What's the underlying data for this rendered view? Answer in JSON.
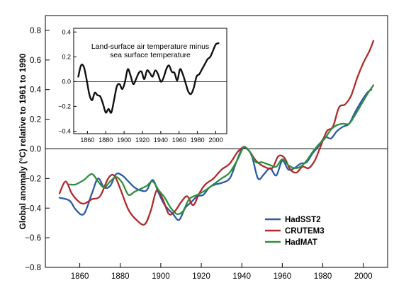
{
  "chart_data": [
    {
      "type": "line",
      "xlabel": "",
      "ylabel": "Global anomaly (°C)  relative to 1961 to 1990",
      "xlim": [
        1843,
        2012
      ],
      "ylim": [
        -0.8,
        0.9
      ],
      "xticks": [
        1860,
        1880,
        1900,
        1920,
        1940,
        1960,
        1980,
        2000
      ],
      "yticks": [
        -0.8,
        -0.6,
        -0.4,
        -0.2,
        0.0,
        0.2,
        0.4,
        0.6,
        0.8
      ],
      "ytick_labels": [
        "−0.8",
        "−0.6",
        "−0.4",
        "−0.2",
        "0.0",
        "0.2",
        "0.4",
        "0.6",
        "0.8"
      ],
      "zero_line": true,
      "grid": false,
      "legend_position": "bottom-right",
      "series": [
        {
          "name": "HadSST2",
          "color": "#2a5aa8",
          "x": [
            1850,
            1855,
            1858,
            1862,
            1866,
            1869,
            1872,
            1875,
            1878,
            1881,
            1884,
            1887,
            1890,
            1893,
            1896,
            1899,
            1902,
            1906,
            1909,
            1912,
            1915,
            1918,
            1921,
            1924,
            1927,
            1930,
            1934,
            1937,
            1940,
            1942,
            1945,
            1948,
            1951,
            1954,
            1957,
            1960,
            1963,
            1966,
            1969,
            1972,
            1975,
            1978,
            1981,
            1984,
            1987,
            1990,
            1993,
            1996,
            1999,
            2002,
            2004
          ],
          "y": [
            -0.33,
            -0.35,
            -0.41,
            -0.44,
            -0.3,
            -0.2,
            -0.26,
            -0.25,
            -0.17,
            -0.18,
            -0.22,
            -0.26,
            -0.28,
            -0.28,
            -0.21,
            -0.3,
            -0.38,
            -0.44,
            -0.48,
            -0.4,
            -0.36,
            -0.32,
            -0.31,
            -0.26,
            -0.24,
            -0.23,
            -0.2,
            -0.1,
            0.0,
            0.01,
            -0.05,
            -0.2,
            -0.17,
            -0.13,
            -0.18,
            -0.08,
            -0.14,
            -0.13,
            -0.1,
            -0.09,
            -0.03,
            0.02,
            0.08,
            0.07,
            0.12,
            0.15,
            0.17,
            0.25,
            0.32,
            0.38,
            0.4
          ]
        },
        {
          "name": "CRUTEM3",
          "color": "#b02a2a",
          "x": [
            1850,
            1853,
            1856,
            1859,
            1862,
            1866,
            1870,
            1874,
            1877,
            1880,
            1884,
            1888,
            1892,
            1895,
            1898,
            1901,
            1904,
            1907,
            1910,
            1913,
            1916,
            1919,
            1922,
            1926,
            1930,
            1934,
            1938,
            1941,
            1944,
            1947,
            1951,
            1955,
            1958,
            1961,
            1964,
            1967,
            1970,
            1973,
            1976,
            1979,
            1982,
            1985,
            1988,
            1991,
            1994,
            1997,
            2000,
            2003,
            2005
          ],
          "y": [
            -0.3,
            -0.22,
            -0.3,
            -0.35,
            -0.37,
            -0.34,
            -0.32,
            -0.2,
            -0.18,
            -0.27,
            -0.41,
            -0.48,
            -0.51,
            -0.42,
            -0.28,
            -0.34,
            -0.44,
            -0.42,
            -0.36,
            -0.32,
            -0.38,
            -0.3,
            -0.24,
            -0.2,
            -0.14,
            -0.1,
            -0.02,
            0.01,
            -0.02,
            -0.08,
            -0.12,
            -0.13,
            -0.05,
            -0.06,
            -0.14,
            -0.16,
            -0.12,
            -0.13,
            -0.08,
            0.02,
            0.12,
            0.15,
            0.28,
            0.3,
            0.36,
            0.48,
            0.58,
            0.66,
            0.73
          ]
        },
        {
          "name": "HadMAT",
          "color": "#2f8f3e",
          "x": [
            1855,
            1858,
            1862,
            1866,
            1869,
            1872,
            1875,
            1878,
            1881,
            1884,
            1887,
            1890,
            1893,
            1896,
            1899,
            1902,
            1905,
            1908,
            1911,
            1914,
            1918,
            1922,
            1926,
            1930,
            1934,
            1938,
            1941,
            1944,
            1947,
            1950,
            1954,
            1957,
            1960,
            1963,
            1966,
            1969,
            1972,
            1975,
            1978,
            1981,
            1984,
            1987,
            1990,
            1993,
            1996,
            1999,
            2002,
            2005
          ],
          "y": [
            -0.24,
            -0.24,
            -0.21,
            -0.17,
            -0.22,
            -0.26,
            -0.22,
            -0.19,
            -0.23,
            -0.31,
            -0.29,
            -0.27,
            -0.25,
            -0.22,
            -0.28,
            -0.33,
            -0.4,
            -0.44,
            -0.42,
            -0.34,
            -0.31,
            -0.28,
            -0.24,
            -0.2,
            -0.16,
            -0.07,
            0.01,
            -0.02,
            -0.09,
            -0.09,
            -0.11,
            -0.12,
            -0.07,
            -0.11,
            -0.13,
            -0.12,
            -0.08,
            -0.02,
            0.03,
            0.07,
            0.13,
            0.16,
            0.17,
            0.17,
            0.23,
            0.3,
            0.37,
            0.43
          ]
        }
      ]
    },
    {
      "type": "line",
      "title": "Land-surface air temperature minus\nsea surface temperature",
      "xlim": [
        1845,
        2012
      ],
      "ylim": [
        -0.42,
        0.43
      ],
      "xticks": [
        1860,
        1880,
        1900,
        1920,
        1940,
        1960,
        1980,
        2000
      ],
      "yticks": [
        -0.4,
        -0.2,
        0.0,
        0.2,
        0.4
      ],
      "ytick_labels": [
        "−0.4",
        "−0.2",
        "0.0",
        "0.2",
        "0.4"
      ],
      "zero_line": true,
      "grid": false,
      "series": [
        {
          "color": "#111111",
          "x": [
            1850,
            1853,
            1856,
            1859,
            1862,
            1865,
            1868,
            1871,
            1874,
            1877,
            1880,
            1883,
            1886,
            1889,
            1892,
            1895,
            1898,
            1901,
            1904,
            1907,
            1910,
            1913,
            1916,
            1919,
            1922,
            1925,
            1928,
            1931,
            1934,
            1937,
            1940,
            1943,
            1946,
            1949,
            1952,
            1955,
            1958,
            1961,
            1964,
            1967,
            1970,
            1973,
            1976,
            1979,
            1982,
            1985,
            1988,
            1991,
            1994,
            1997,
            2000,
            2003
          ],
          "y": [
            0.04,
            0.13,
            0.12,
            0.02,
            -0.1,
            -0.15,
            -0.09,
            -0.11,
            -0.12,
            -0.18,
            -0.25,
            -0.22,
            -0.25,
            -0.15,
            -0.04,
            -0.02,
            -0.06,
            0.0,
            0.1,
            0.05,
            -0.02,
            0.02,
            0.07,
            0.08,
            0.02,
            0.09,
            0.07,
            0.04,
            0.09,
            0.06,
            0.0,
            0.03,
            0.1,
            0.13,
            0.08,
            0.07,
            0.01,
            0.1,
            0.06,
            -0.01,
            -0.08,
            -0.1,
            -0.05,
            0.04,
            0.06,
            0.1,
            0.14,
            0.18,
            0.2,
            0.25,
            0.3,
            0.31
          ]
        }
      ]
    }
  ]
}
